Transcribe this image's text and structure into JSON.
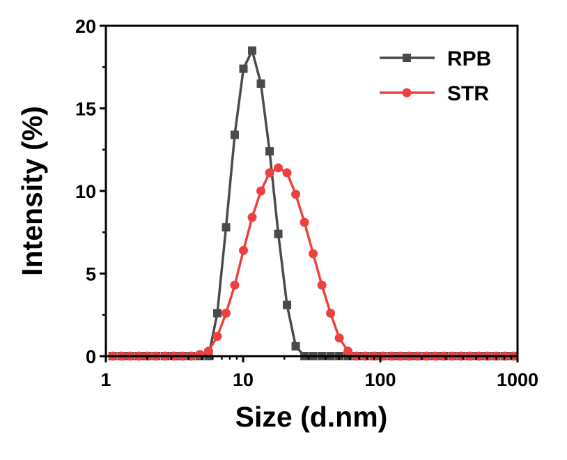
{
  "chart_data": {
    "type": "line",
    "xlabel": "Size (d.nm)",
    "ylabel": "Intensity (%)",
    "xscale": "log",
    "xlim": [
      1,
      1000
    ],
    "ylim": [
      0,
      20
    ],
    "xticks": [
      1,
      10,
      100,
      1000
    ],
    "xtick_labels": [
      "1",
      "10",
      "100",
      "1000"
    ],
    "yticks": [
      0,
      5,
      10,
      15,
      20
    ],
    "ytick_labels": [
      "0",
      "5",
      "10",
      "15",
      "20"
    ],
    "grid": false,
    "legend_position": "top-right",
    "x": [
      1.12,
      1.3,
      1.5,
      1.74,
      2.01,
      2.33,
      2.7,
      3.12,
      3.61,
      4.18,
      4.84,
      5.6,
      6.49,
      7.51,
      8.69,
      10.06,
      11.64,
      13.48,
      15.6,
      18.05,
      20.89,
      24.18,
      27.99,
      32.4,
      37.5,
      43.4,
      50.2,
      58.1,
      67.3,
      77.9,
      90.2,
      104,
      121,
      140,
      162,
      187,
      217,
      251,
      290,
      336,
      389,
      450,
      521,
      603,
      698,
      808,
      935
    ],
    "series": [
      {
        "name": "RPB",
        "color": "#4a4a4a",
        "marker": "square",
        "values": [
          0,
          0,
          0,
          0,
          0,
          0,
          0,
          0,
          0,
          0,
          0,
          0,
          2.6,
          7.8,
          13.4,
          17.4,
          18.5,
          16.5,
          12.4,
          7.4,
          3.1,
          0.6,
          0,
          0,
          0,
          0,
          0,
          0,
          0,
          0,
          0,
          0,
          0,
          0,
          0,
          0,
          0,
          0,
          0,
          0,
          0,
          0,
          0,
          0,
          0,
          0,
          0
        ]
      },
      {
        "name": "STR",
        "color": "#ef4040",
        "marker": "circle",
        "values": [
          0,
          0,
          0,
          0,
          0,
          0,
          0,
          0,
          0,
          0,
          0.1,
          0.3,
          1.2,
          2.6,
          4.3,
          6.4,
          8.4,
          10.0,
          11.1,
          11.4,
          11.1,
          9.8,
          8.1,
          6.2,
          4.3,
          2.6,
          1.1,
          0.3,
          0,
          0,
          0,
          0,
          0,
          0,
          0,
          0,
          0,
          0,
          0,
          0,
          0,
          0,
          0,
          0,
          0,
          0,
          0
        ]
      }
    ]
  }
}
